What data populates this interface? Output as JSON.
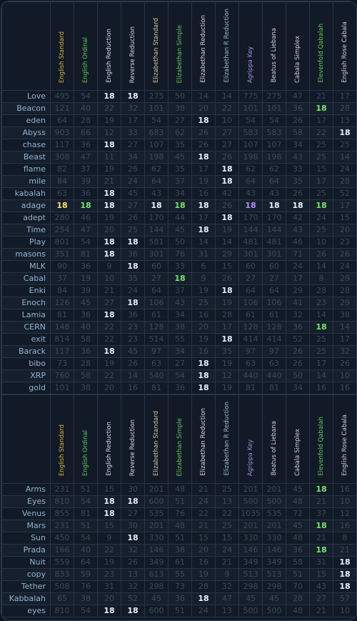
{
  "headers": [
    "English Standard",
    "English Ordinal",
    "English Reduction",
    "Reverse Reduction",
    "Elizabethan Standard",
    "Elizabethan Simple",
    "Elizabethan Reduction",
    "Elizabethan R Reduction",
    "Agrippa Key",
    "Beatus of Liebana",
    "Cabala Simplex",
    "Elevenfold Qabalah",
    "English Rose Cabala"
  ],
  "highlight_value": "18",
  "colors": {
    "yellow": "#ffe070",
    "green": "#7be36d",
    "white": "#e6f2ff",
    "purple": "#b790f0"
  },
  "table1": [
    {
      "word": "Love",
      "vals": [
        "495",
        "54",
        "18",
        "18",
        "275",
        "50",
        "14",
        "14",
        "775",
        "275",
        "47",
        "21",
        "17"
      ]
    },
    {
      "word": "Beacon",
      "vals": [
        "121",
        "40",
        "22",
        "32",
        "101",
        "38",
        "20",
        "22",
        "101",
        "101",
        "36",
        "18",
        "28"
      ]
    },
    {
      "word": "eden",
      "vals": [
        "64",
        "28",
        "19",
        "17",
        "54",
        "27",
        "18",
        "10",
        "54",
        "54",
        "26",
        "17",
        "13"
      ]
    },
    {
      "word": "Abyss",
      "vals": [
        "903",
        "66",
        "12",
        "33",
        "683",
        "62",
        "26",
        "27",
        "583",
        "583",
        "58",
        "22",
        "18"
      ]
    },
    {
      "word": "chase",
      "vals": [
        "117",
        "36",
        "18",
        "27",
        "107",
        "35",
        "26",
        "27",
        "107",
        "107",
        "34",
        "25",
        "25"
      ]
    },
    {
      "word": "Beast",
      "vals": [
        "308",
        "47",
        "11",
        "34",
        "198",
        "45",
        "18",
        "26",
        "198",
        "198",
        "43",
        "25",
        "14"
      ]
    },
    {
      "word": "flame",
      "vals": [
        "82",
        "37",
        "19",
        "26",
        "62",
        "35",
        "17",
        "18",
        "62",
        "62",
        "33",
        "15",
        "24"
      ]
    },
    {
      "word": "mile",
      "vals": [
        "84",
        "39",
        "21",
        "24",
        "64",
        "37",
        "19",
        "18",
        "64",
        "64",
        "35",
        "17",
        "28"
      ]
    },
    {
      "word": "kabalah",
      "vals": [
        "63",
        "36",
        "18",
        "45",
        "43",
        "34",
        "16",
        "42",
        "43",
        "43",
        "26",
        "25",
        "52"
      ]
    },
    {
      "word": "adage",
      "vals": [
        "18",
        "18",
        "18",
        "27",
        "18",
        "18",
        "18",
        "26",
        "18",
        "18",
        "18",
        "18",
        "17"
      ]
    },
    {
      "word": "adept",
      "vals": [
        "280",
        "46",
        "19",
        "26",
        "170",
        "44",
        "17",
        "18",
        "170",
        "170",
        "42",
        "24",
        "15"
      ]
    },
    {
      "word": "Time",
      "vals": [
        "254",
        "47",
        "20",
        "25",
        "144",
        "45",
        "18",
        "19",
        "144",
        "144",
        "43",
        "25",
        "20"
      ]
    },
    {
      "word": "Play",
      "vals": [
        "801",
        "54",
        "18",
        "18",
        "581",
        "50",
        "14",
        "14",
        "481",
        "481",
        "46",
        "10",
        "23"
      ]
    },
    {
      "word": "masons",
      "vals": [
        "351",
        "81",
        "18",
        "36",
        "301",
        "76",
        "31",
        "29",
        "301",
        "301",
        "71",
        "26",
        "26"
      ]
    },
    {
      "word": "MLK",
      "vals": [
        "90",
        "36",
        "9",
        "18",
        "60",
        "33",
        "6",
        "15",
        "60",
        "60",
        "24",
        "14",
        "24"
      ]
    },
    {
      "word": "Cabal",
      "vals": [
        "37",
        "19",
        "10",
        "35",
        "27",
        "18",
        "9",
        "26",
        "27",
        "27",
        "17",
        "8",
        "29"
      ]
    },
    {
      "word": "Enki",
      "vals": [
        "84",
        "39",
        "21",
        "24",
        "64",
        "37",
        "19",
        "18",
        "64",
        "64",
        "29",
        "28",
        "28"
      ]
    },
    {
      "word": "Enoch",
      "vals": [
        "126",
        "45",
        "27",
        "18",
        "106",
        "43",
        "25",
        "19",
        "106",
        "106",
        "41",
        "23",
        "29"
      ]
    },
    {
      "word": "Lamia",
      "vals": [
        "81",
        "36",
        "18",
        "36",
        "61",
        "34",
        "16",
        "28",
        "61",
        "61",
        "32",
        "14",
        "38"
      ]
    },
    {
      "word": "CERN",
      "vals": [
        "148",
        "40",
        "22",
        "23",
        "128",
        "38",
        "20",
        "17",
        "128",
        "128",
        "36",
        "18",
        "14"
      ]
    },
    {
      "word": "exit",
      "vals": [
        "814",
        "58",
        "22",
        "23",
        "514",
        "55",
        "19",
        "18",
        "414",
        "414",
        "52",
        "25",
        "17"
      ]
    },
    {
      "word": "Barack",
      "vals": [
        "117",
        "36",
        "18",
        "45",
        "97",
        "34",
        "16",
        "35",
        "97",
        "97",
        "26",
        "25",
        "32"
      ]
    },
    {
      "word": "bibo",
      "vals": [
        "73",
        "28",
        "19",
        "26",
        "63",
        "27",
        "18",
        "19",
        "63",
        "63",
        "26",
        "17",
        "26"
      ]
    },
    {
      "word": "XRP",
      "vals": [
        "760",
        "58",
        "22",
        "14",
        "540",
        "54",
        "18",
        "12",
        "440",
        "440",
        "50",
        "14",
        "10"
      ]
    },
    {
      "word": "gold",
      "vals": [
        "101",
        "38",
        "20",
        "16",
        "81",
        "36",
        "18",
        "19",
        "81",
        "81",
        "34",
        "16",
        "16"
      ]
    }
  ],
  "table2": [
    {
      "word": "Arms",
      "vals": [
        "231",
        "51",
        "15",
        "30",
        "201",
        "48",
        "21",
        "25",
        "201",
        "201",
        "45",
        "18",
        "16"
      ]
    },
    {
      "word": "Eyes",
      "vals": [
        "810",
        "54",
        "18",
        "18",
        "600",
        "51",
        "24",
        "13",
        "500",
        "500",
        "48",
        "21",
        "10"
      ]
    },
    {
      "word": "Venus",
      "vals": [
        "855",
        "81",
        "18",
        "27",
        "535",
        "76",
        "22",
        "22",
        "1035",
        "535",
        "72",
        "37",
        "12"
      ]
    },
    {
      "word": "Mars",
      "vals": [
        "231",
        "51",
        "15",
        "30",
        "201",
        "48",
        "21",
        "25",
        "201",
        "201",
        "45",
        "18",
        "16"
      ]
    },
    {
      "word": "Sun",
      "vals": [
        "450",
        "54",
        "9",
        "18",
        "330",
        "51",
        "15",
        "15",
        "330",
        "330",
        "48",
        "21",
        "8"
      ]
    },
    {
      "word": "Prada",
      "vals": [
        "166",
        "40",
        "22",
        "32",
        "146",
        "38",
        "20",
        "24",
        "146",
        "146",
        "36",
        "18",
        "21"
      ]
    },
    {
      "word": "Nuit",
      "vals": [
        "559",
        "64",
        "19",
        "26",
        "349",
        "61",
        "16",
        "21",
        "349",
        "349",
        "58",
        "31",
        "18"
      ]
    },
    {
      "word": "copy",
      "vals": [
        "833",
        "59",
        "23",
        "13",
        "613",
        "55",
        "19",
        "9",
        "513",
        "513",
        "51",
        "15",
        "18"
      ]
    },
    {
      "word": "Tether",
      "vals": [
        "508",
        "76",
        "31",
        "32",
        "298",
        "73",
        "28",
        "32",
        "298",
        "298",
        "70",
        "43",
        "18"
      ]
    },
    {
      "word": "Kabbalah",
      "vals": [
        "65",
        "38",
        "20",
        "52",
        "45",
        "36",
        "18",
        "47",
        "45",
        "45",
        "28",
        "27",
        "57"
      ]
    },
    {
      "word": "eyes",
      "vals": [
        "810",
        "54",
        "18",
        "18",
        "600",
        "51",
        "24",
        "13",
        "500",
        "500",
        "48",
        "21",
        "10"
      ]
    }
  ]
}
